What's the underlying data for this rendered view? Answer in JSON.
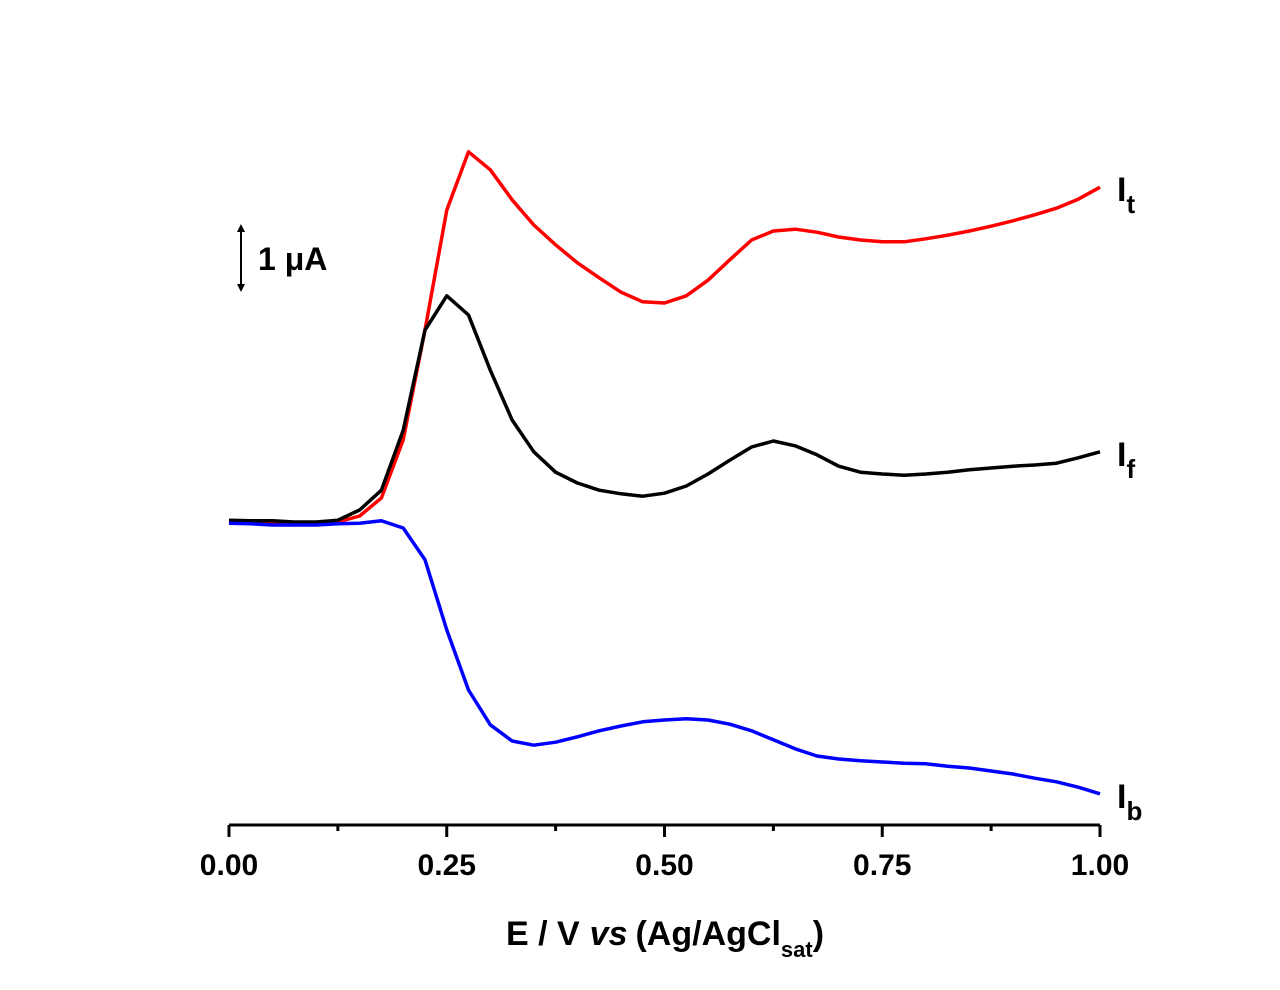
{
  "chart_data": {
    "type": "line",
    "xlabel": {
      "pre": "E / V",
      "italic": "vs",
      "main": "(Ag/AgCl",
      "sub": "sat",
      "post": ")"
    },
    "x": [
      0,
      0.025,
      0.05,
      0.075,
      0.1,
      0.125,
      0.15,
      0.175,
      0.2,
      0.225,
      0.25,
      0.275,
      0.3,
      0.325,
      0.35,
      0.375,
      0.4,
      0.425,
      0.45,
      0.475,
      0.5,
      0.525,
      0.55,
      0.575,
      0.6,
      0.625,
      0.65,
      0.675,
      0.7,
      0.725,
      0.75,
      0.775,
      0.8,
      0.825,
      0.85,
      0.875,
      0.9,
      0.925,
      0.95,
      0.975,
      1.0
    ],
    "series": [
      {
        "name": "I",
        "subscript": "t",
        "color": "#ff0000",
        "values": [
          0.02,
          0,
          0,
          -0.02,
          -0.02,
          0,
          0.1,
          0.4,
          1.37,
          3.2,
          5.2,
          6.17,
          5.87,
          5.37,
          4.95,
          4.62,
          4.32,
          4.07,
          3.83,
          3.67,
          3.65,
          3.77,
          4.03,
          4.37,
          4.7,
          4.85,
          4.88,
          4.83,
          4.75,
          4.7,
          4.67,
          4.67,
          4.72,
          4.78,
          4.85,
          4.93,
          5.02,
          5.12,
          5.23,
          5.38,
          5.58
        ]
      },
      {
        "name": "I",
        "subscript": "f",
        "color": "#000000",
        "values": [
          0.03,
          0.02,
          0.02,
          0,
          0,
          0.03,
          0.2,
          0.53,
          1.53,
          3.2,
          3.77,
          3.45,
          2.53,
          1.7,
          1.17,
          0.83,
          0.65,
          0.53,
          0.47,
          0.43,
          0.48,
          0.6,
          0.8,
          1.03,
          1.25,
          1.35,
          1.27,
          1.12,
          0.93,
          0.83,
          0.8,
          0.78,
          0.8,
          0.83,
          0.87,
          0.9,
          0.93,
          0.95,
          0.98,
          1.07,
          1.17
        ]
      },
      {
        "name": "I",
        "subscript": "b",
        "color": "#0000ff",
        "values": [
          -0.02,
          -0.03,
          -0.05,
          -0.05,
          -0.05,
          -0.03,
          -0.02,
          0.02,
          -0.1,
          -0.63,
          -1.8,
          -2.8,
          -3.38,
          -3.65,
          -3.72,
          -3.67,
          -3.58,
          -3.48,
          -3.4,
          -3.33,
          -3.3,
          -3.28,
          -3.3,
          -3.37,
          -3.48,
          -3.63,
          -3.78,
          -3.9,
          -3.95,
          -3.98,
          -4.0,
          -4.02,
          -4.03,
          -4.07,
          -4.1,
          -4.15,
          -4.2,
          -4.27,
          -4.33,
          -4.42,
          -4.53
        ]
      }
    ],
    "xlim": [
      0,
      1
    ],
    "xticks": [
      {
        "value": 0,
        "label": "0.00"
      },
      {
        "value": 0.25,
        "label": "0.25"
      },
      {
        "value": 0.5,
        "label": "0.50"
      },
      {
        "value": 0.75,
        "label": "0.75"
      },
      {
        "value": 1,
        "label": "1.00"
      }
    ],
    "xminorticks": [
      0.125,
      0.375,
      0.625,
      0.875
    ],
    "ylim": [
      -5,
      7
    ],
    "scale_bar": {
      "value": 1,
      "label": "1 μA"
    }
  }
}
